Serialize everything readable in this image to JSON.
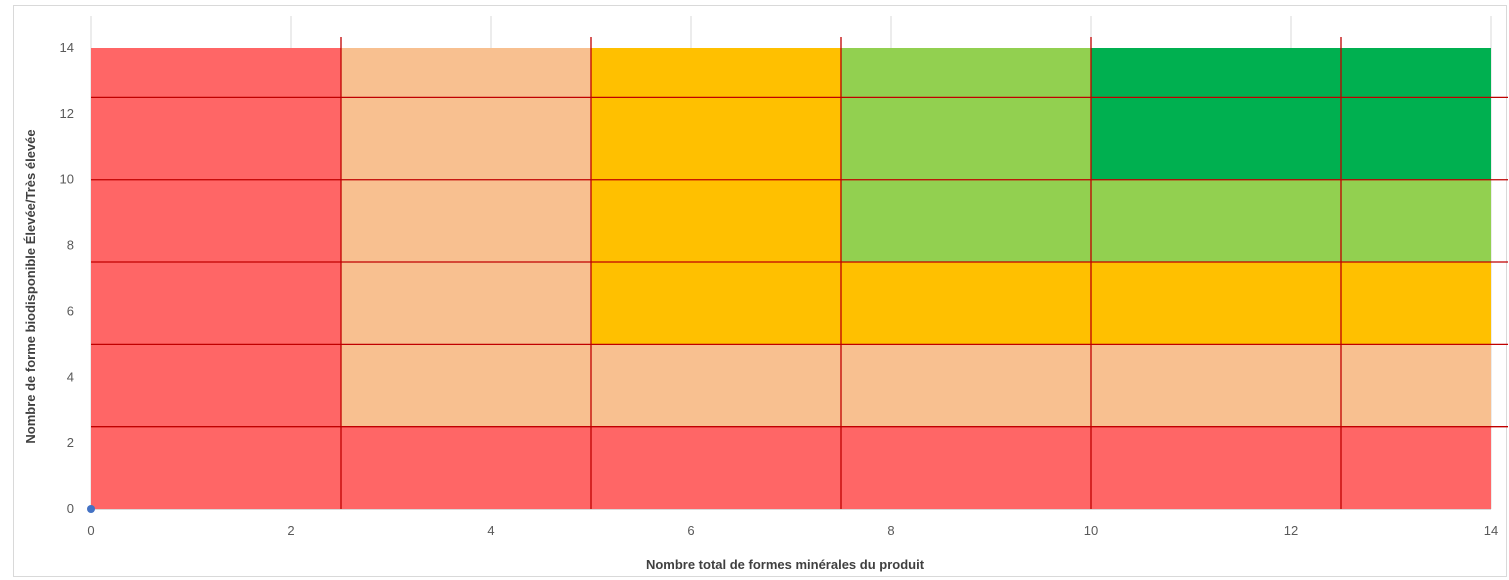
{
  "chart_data": {
    "type": "heatmap",
    "xlabel": "Nombre total de formes minérales du produit",
    "ylabel": "Nombre de forme biodisponible  Élevée/Très élevée",
    "xlim": [
      0,
      14
    ],
    "ylim": [
      0,
      14
    ],
    "x_ticks": [
      0,
      2,
      4,
      6,
      8,
      10,
      12,
      14
    ],
    "y_ticks": [
      0,
      2,
      4,
      6,
      8,
      10,
      12,
      14
    ],
    "grid": true,
    "zone_colors": {
      "red": "#ff6666",
      "peach": "#f8c090",
      "orange": "#ffc000",
      "light_green": "#92d050",
      "dark_green": "#00b050"
    },
    "zones": [
      {
        "x": [
          0,
          2.5
        ],
        "y": [
          0,
          14
        ],
        "color": "red"
      },
      {
        "x": [
          2.5,
          14
        ],
        "y": [
          0,
          2.5
        ],
        "color": "red"
      },
      {
        "x": [
          2.5,
          5
        ],
        "y": [
          2.5,
          14
        ],
        "color": "peach"
      },
      {
        "x": [
          5,
          14
        ],
        "y": [
          2.5,
          5
        ],
        "color": "peach"
      },
      {
        "x": [
          5,
          7.5
        ],
        "y": [
          5,
          14
        ],
        "color": "orange"
      },
      {
        "x": [
          7.5,
          14
        ],
        "y": [
          5,
          7.5
        ],
        "color": "orange"
      },
      {
        "x": [
          7.5,
          10
        ],
        "y": [
          7.5,
          14
        ],
        "color": "light_green"
      },
      {
        "x": [
          10,
          14
        ],
        "y": [
          7.5,
          10
        ],
        "color": "light_green"
      },
      {
        "x": [
          10,
          14
        ],
        "y": [
          10,
          14
        ],
        "color": "dark_green"
      }
    ],
    "threshold_lines_x": [
      2.5,
      5,
      7.5,
      10,
      12.5
    ],
    "threshold_lines_y": [
      2.5,
      5,
      7.5,
      10,
      12.5
    ],
    "threshold_color": "#c00000",
    "points": [
      {
        "x": 0,
        "y": 0
      }
    ],
    "point_color": "#4472c4"
  }
}
